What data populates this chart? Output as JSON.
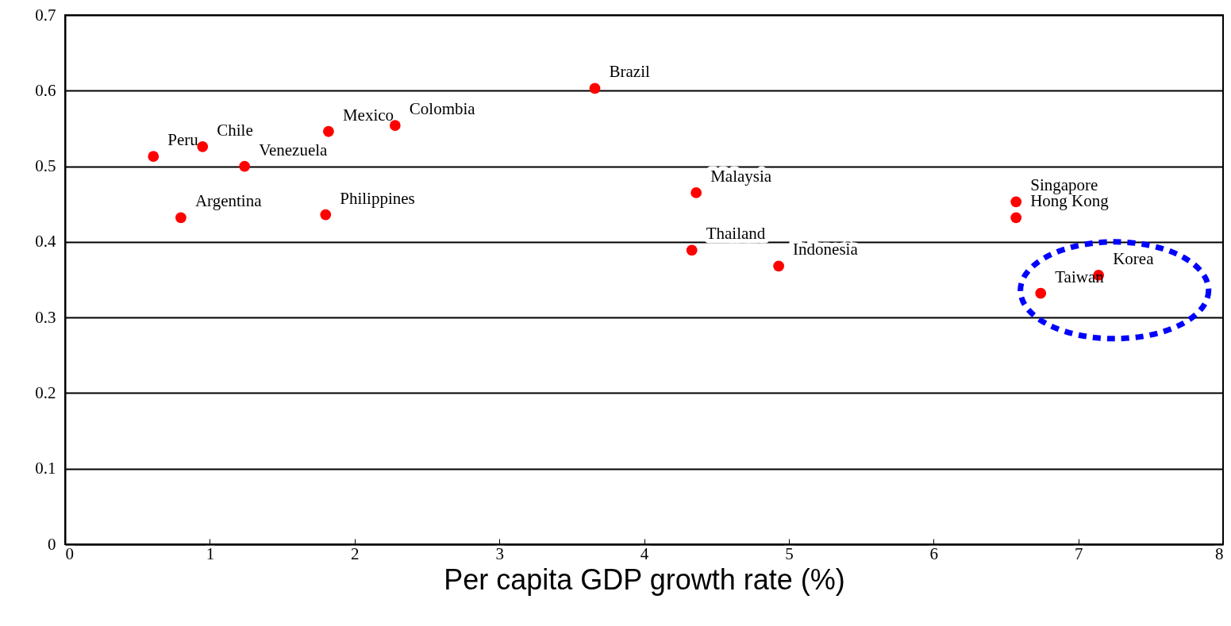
{
  "chart_data": {
    "type": "scatter",
    "xlabel": "Per capita GDP growth rate (%)",
    "x": [
      0.61,
      0.8,
      0.95,
      1.24,
      1.8,
      1.82,
      2.28,
      3.66,
      4.36,
      4.33,
      4.93,
      6.57,
      6.57,
      7.14,
      6.74
    ],
    "values": [
      0.513,
      0.432,
      0.526,
      0.5,
      0.436,
      0.546,
      0.554,
      0.603,
      0.465,
      0.389,
      0.368,
      0.453,
      0.432,
      0.356,
      0.332
    ],
    "color": "#ff0000",
    "marker": "circle",
    "xlim": [
      0,
      8
    ],
    "xticks": [
      0,
      1,
      2,
      3,
      4,
      5,
      6,
      7,
      8
    ],
    "ylim": [
      0,
      0.7
    ],
    "yticks": [
      0,
      0.1,
      0.2,
      0.3,
      0.4,
      0.5,
      0.6,
      0.7
    ],
    "grid": "y",
    "annotations": [
      {
        "text": "Peru",
        "x": 0.61,
        "y": 0.513
      },
      {
        "text": "Argentina",
        "x": 0.8,
        "y": 0.432
      },
      {
        "text": "Chile",
        "x": 0.95,
        "y": 0.526
      },
      {
        "text": "Venezuela",
        "x": 1.24,
        "y": 0.5
      },
      {
        "text": "Philippines",
        "x": 1.8,
        "y": 0.436
      },
      {
        "text": "Mexico",
        "x": 1.82,
        "y": 0.546
      },
      {
        "text": "Colombia",
        "x": 2.28,
        "y": 0.554
      },
      {
        "text": "Brazil",
        "x": 3.66,
        "y": 0.603
      },
      {
        "text": "Malaysia",
        "x": 4.36,
        "y": 0.465
      },
      {
        "text": "Thailand",
        "x": 4.33,
        "y": 0.389
      },
      {
        "text": "Indonesia",
        "x": 4.93,
        "y": 0.368
      },
      {
        "text": "Singapore",
        "x": 6.57,
        "y": 0.453
      },
      {
        "text": "Hong Kong",
        "x": 6.57,
        "y": 0.432
      },
      {
        "text": "Korea",
        "x": 7.14,
        "y": 0.356
      },
      {
        "text": "Taiwan",
        "x": 6.74,
        "y": 0.332
      }
    ]
  }
}
